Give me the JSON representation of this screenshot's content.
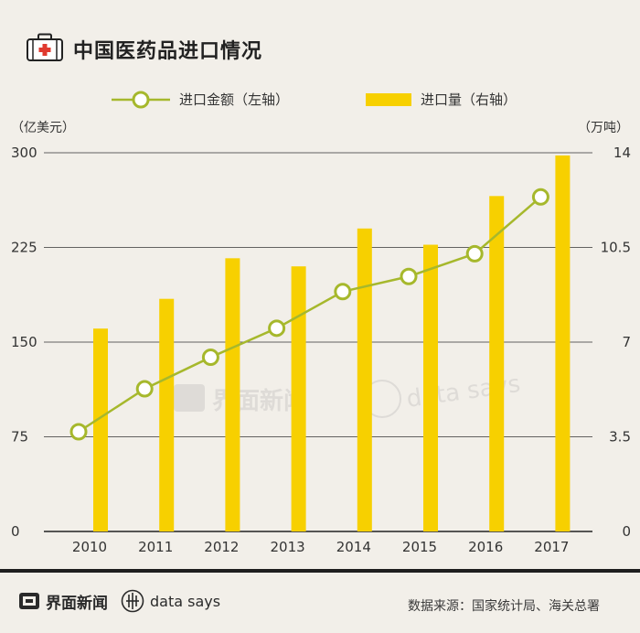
{
  "title": "中国医药品进口情况",
  "colors": {
    "bar": "#f7d000",
    "line": "#a6b82c",
    "marker_fill": "#ffffff",
    "axis": "#333333",
    "background": "#f2efe9",
    "icon_red": "#e03a2f"
  },
  "watermark": {
    "brand": "界面新闻",
    "ds": "data says"
  },
  "footer": {
    "brand": "界面新闻",
    "ds": "data says",
    "source": "数据来源：国家统计局、海关总署"
  },
  "chart_data": {
    "type": "bar+line",
    "title": "中国医药品进口情况",
    "categories": [
      "2010",
      "2011",
      "2012",
      "2013",
      "2014",
      "2015",
      "2016",
      "2017"
    ],
    "left_axis": {
      "unit": "（亿美元）",
      "range": [
        0,
        300
      ],
      "ticks": [
        0,
        75,
        150,
        225,
        300
      ],
      "tick_labels": [
        "0",
        "75",
        "150",
        "225",
        "300"
      ]
    },
    "right_axis": {
      "unit": "（万吨）",
      "range": [
        0,
        14
      ],
      "ticks": [
        0,
        3.5,
        7,
        10.5,
        14
      ],
      "tick_labels": [
        "0",
        "3.5",
        "7",
        "10.5",
        "14"
      ]
    },
    "series": [
      {
        "name": "进口量（右轴）",
        "type": "bar",
        "axis": "right",
        "values": [
          7.5,
          8.6,
          10.1,
          9.8,
          11.2,
          10.6,
          12.4,
          13.9
        ]
      },
      {
        "name": "进口金额（左轴）",
        "type": "line",
        "axis": "left",
        "values": [
          79,
          113,
          138,
          161,
          190,
          202,
          220,
          265
        ]
      }
    ],
    "legend": [
      "进口金额（左轴）",
      "进口量（右轴）"
    ],
    "legend_position": "top"
  }
}
